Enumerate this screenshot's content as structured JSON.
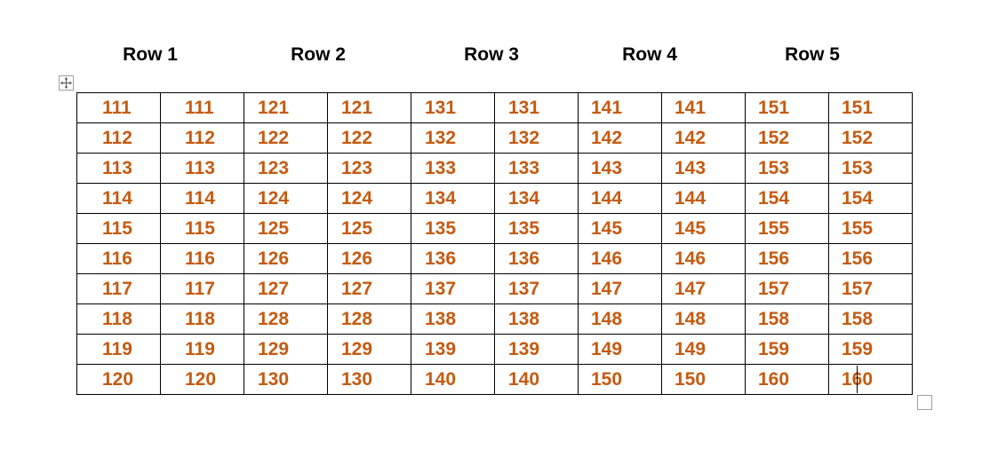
{
  "column_headers": [
    "Row 1",
    "Row 2",
    "Row 3",
    "Row 4",
    "Row 5"
  ],
  "accent_color": "#c55a11",
  "move_handle_icon": "move-arrows-icon",
  "resize_handle_icon": "resize-square-icon",
  "table": {
    "rows": [
      [
        "111",
        "111",
        "121",
        "121",
        "131",
        "131",
        "141",
        "141",
        "151",
        "151"
      ],
      [
        "112",
        "112",
        "122",
        "122",
        "132",
        "132",
        "142",
        "142",
        "152",
        "152"
      ],
      [
        "113",
        "113",
        "123",
        "123",
        "133",
        "133",
        "143",
        "143",
        "153",
        "153"
      ],
      [
        "114",
        "114",
        "124",
        "124",
        "134",
        "134",
        "144",
        "144",
        "154",
        "154"
      ],
      [
        "115",
        "115",
        "125",
        "125",
        "135",
        "135",
        "145",
        "145",
        "155",
        "155"
      ],
      [
        "116",
        "116",
        "126",
        "126",
        "136",
        "136",
        "146",
        "146",
        "156",
        "156"
      ],
      [
        "117",
        "117",
        "127",
        "127",
        "137",
        "137",
        "147",
        "147",
        "157",
        "157"
      ],
      [
        "118",
        "118",
        "128",
        "128",
        "138",
        "138",
        "148",
        "148",
        "158",
        "158"
      ],
      [
        "119",
        "119",
        "129",
        "129",
        "139",
        "139",
        "149",
        "149",
        "159",
        "159"
      ],
      [
        "120",
        "120",
        "130",
        "130",
        "140",
        "140",
        "150",
        "150",
        "160",
        "160"
      ]
    ]
  }
}
